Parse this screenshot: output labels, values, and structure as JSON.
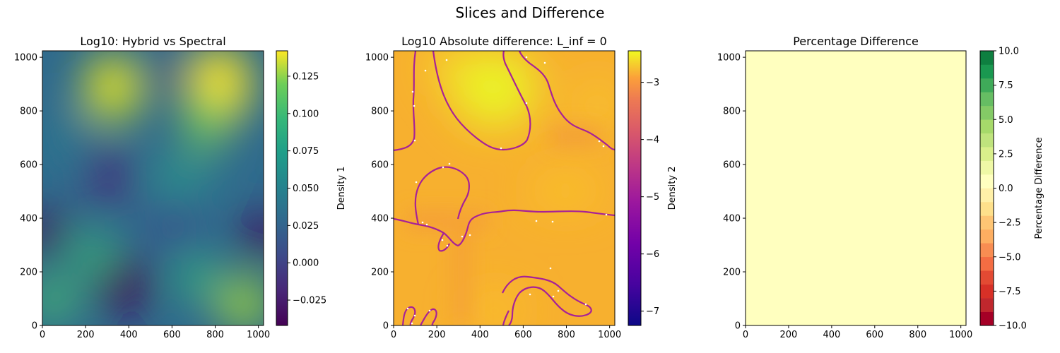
{
  "figure": {
    "suptitle": "Slices and Difference"
  },
  "chart_data": [
    {
      "type": "heatmap",
      "title": "Log10: Hybrid vs Spectral",
      "xlabel": "",
      "ylabel": "",
      "xlim": [
        0,
        1024
      ],
      "ylim": [
        0,
        1024
      ],
      "xticks": [
        0,
        200,
        400,
        600,
        800,
        1000
      ],
      "yticks": [
        0,
        200,
        400,
        600,
        800,
        1000
      ],
      "colormap": "viridis",
      "colorbar": {
        "label": "Density 1",
        "range": [
          -0.042,
          0.142
        ],
        "ticks": [
          "−0.025",
          "0.000",
          "0.025",
          "0.050",
          "0.075",
          "0.100",
          "0.125"
        ],
        "tick_values": [
          -0.025,
          0.0,
          0.025,
          0.05,
          0.075,
          0.1,
          0.125
        ]
      },
      "features": [
        {
          "x": 330,
          "y": 880,
          "value": 0.135
        },
        {
          "x": 820,
          "y": 880,
          "value": 0.14
        },
        {
          "x": 560,
          "y": 960,
          "value": -0.03
        },
        {
          "x": 330,
          "y": 560,
          "value": -0.03
        },
        {
          "x": 20,
          "y": 360,
          "value": -0.04
        },
        {
          "x": 1010,
          "y": 340,
          "value": -0.04
        },
        {
          "x": 380,
          "y": 150,
          "value": -0.04
        },
        {
          "x": 600,
          "y": 380,
          "value": -0.02
        },
        {
          "x": 950,
          "y": 80,
          "value": 0.11
        },
        {
          "x": 40,
          "y": 100,
          "value": 0.075
        },
        {
          "x": 200,
          "y": 320,
          "value": 0.06
        },
        {
          "x": 800,
          "y": 230,
          "value": 0.05
        }
      ]
    },
    {
      "type": "heatmap",
      "title": "Log10 Absolute difference: L_inf = 0",
      "xlabel": "",
      "ylabel": "",
      "xlim": [
        0,
        1024
      ],
      "ylim": [
        0,
        1024
      ],
      "xticks": [
        0,
        200,
        400,
        600,
        800,
        1000
      ],
      "yticks": [
        0,
        200,
        400,
        600,
        800,
        1000
      ],
      "colormap": "plasma",
      "colorbar": {
        "label": "Density 2",
        "range": [
          -7.25,
          -2.45
        ],
        "ticks": [
          "−7",
          "−6",
          "−5",
          "−4",
          "−3"
        ],
        "tick_values": [
          -7,
          -6,
          -5,
          -4,
          -3
        ]
      }
    },
    {
      "type": "heatmap",
      "title": "Percentage Difference",
      "xlabel": "",
      "ylabel": "",
      "xlim": [
        0,
        1024
      ],
      "ylim": [
        0,
        1024
      ],
      "xticks": [
        0,
        200,
        400,
        600,
        800,
        1000
      ],
      "yticks": [
        0,
        200,
        400,
        600,
        800,
        1000
      ],
      "colormap": "RdYlGn",
      "uniform_value": 0,
      "colorbar": {
        "label": "Percentage Difference",
        "range": [
          -10,
          10
        ],
        "ticks": [
          "−10.0",
          "−7.5",
          "−5.0",
          "−2.5",
          "0.0",
          "2.5",
          "5.0",
          "7.5",
          "10.0"
        ],
        "tick_values": [
          -10,
          -7.5,
          -5,
          -2.5,
          0,
          2.5,
          5,
          7.5,
          10
        ]
      }
    }
  ]
}
